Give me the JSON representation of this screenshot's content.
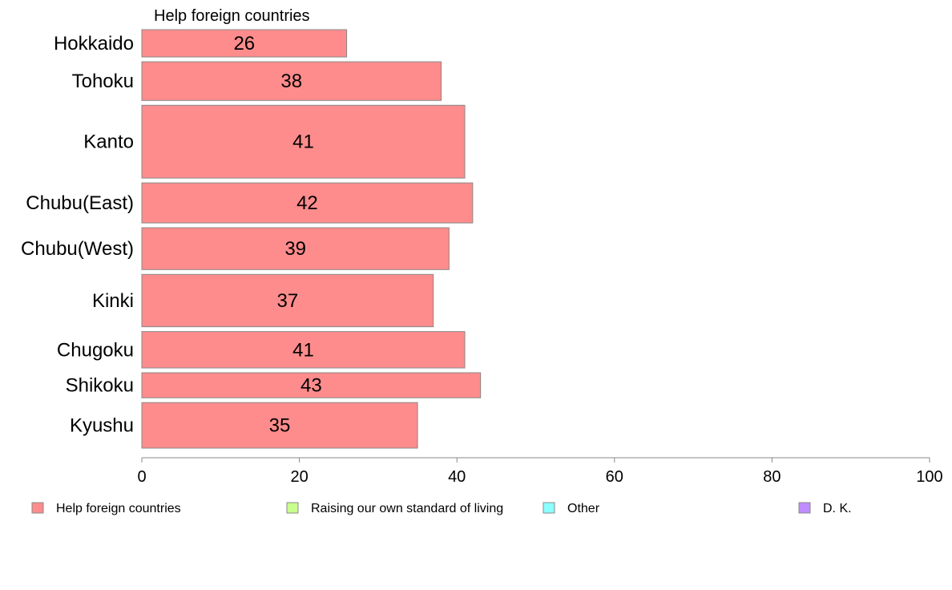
{
  "chart_data": {
    "type": "bar",
    "orientation": "horizontal",
    "title": "",
    "xlabel": "",
    "ylabel": "",
    "panel_title": "Help foreign countries",
    "categories": [
      "Hokkaido",
      "Tohoku",
      "Kanto",
      "Chubu(East)",
      "Chubu(West)",
      "Kinki",
      "Chugoku",
      "Shikoku",
      "Kyushu"
    ],
    "series": [
      {
        "name": "Help foreign countries",
        "values": [
          26,
          38,
          41,
          42,
          39,
          37,
          41,
          43,
          35
        ]
      }
    ],
    "bar_weights": [
      0.6,
      0.85,
      1.6,
      0.88,
      0.92,
      1.15,
      0.8,
      0.55,
      1.0
    ],
    "xlim": [
      0,
      100
    ],
    "xticks": [
      0,
      20,
      40,
      60,
      80,
      100
    ],
    "grid": false,
    "legend": {
      "placement": "bottom",
      "entries": [
        {
          "label": "Help foreign countries",
          "color": "#ff8c8c"
        },
        {
          "label": "Raising our own standard of living",
          "color": "#c8ff8c"
        },
        {
          "label": "Other",
          "color": "#8cffff"
        },
        {
          "label": "D. K.",
          "color": "#c08cff"
        }
      ]
    },
    "colors": {
      "bar": "#ff8c8c",
      "bar_stroke": "#888888",
      "axis": "#888888"
    }
  }
}
